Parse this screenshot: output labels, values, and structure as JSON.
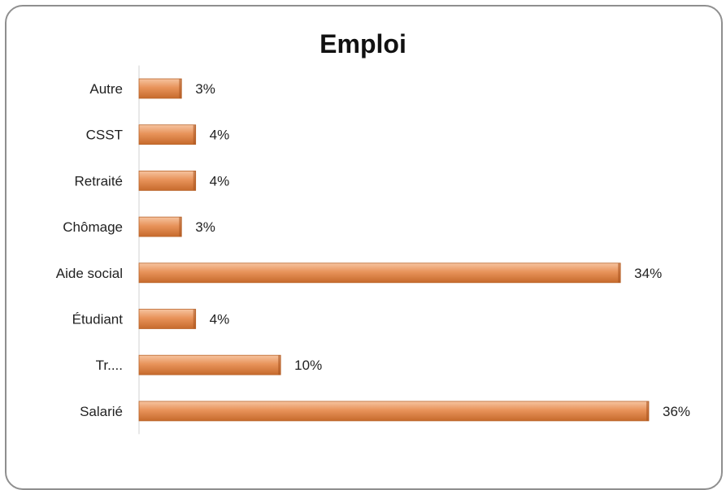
{
  "chart_data": {
    "type": "bar",
    "orientation": "horizontal",
    "title": "Emploi",
    "categories": [
      "Autre",
      "CSST",
      "Retraité",
      "Chômage",
      "Aide social",
      "Étudiant",
      "Tr....",
      "Salarié"
    ],
    "values": [
      3,
      4,
      4,
      3,
      34,
      4,
      10,
      36
    ],
    "value_labels": [
      "3%",
      "4%",
      "4%",
      "3%",
      "34%",
      "4%",
      "10%",
      "36%"
    ],
    "xlim": [
      0,
      36
    ],
    "grid": false,
    "legend": "none",
    "bar_color": "#e8935a"
  }
}
